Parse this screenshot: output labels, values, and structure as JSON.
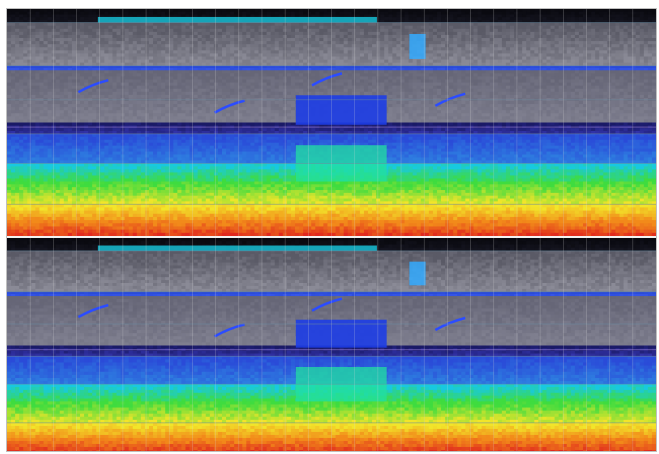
{
  "image": {
    "kind": "spectrogram-style pseudo-colour visualization",
    "panels": 2,
    "panel_names": [
      "top-spectrogram-panel",
      "bottom-spectrogram-panel"
    ],
    "colors": {
      "background": "#0b0b12",
      "gray_band": "#8a8a96",
      "blue": "#2a4bd8",
      "cyan": "#18c9e0",
      "green": "#3fdc3f",
      "yellow": "#f2e52a",
      "orange": "#f28a1a",
      "red": "#e0281e",
      "gridline": "#d8d8d8"
    }
  }
}
